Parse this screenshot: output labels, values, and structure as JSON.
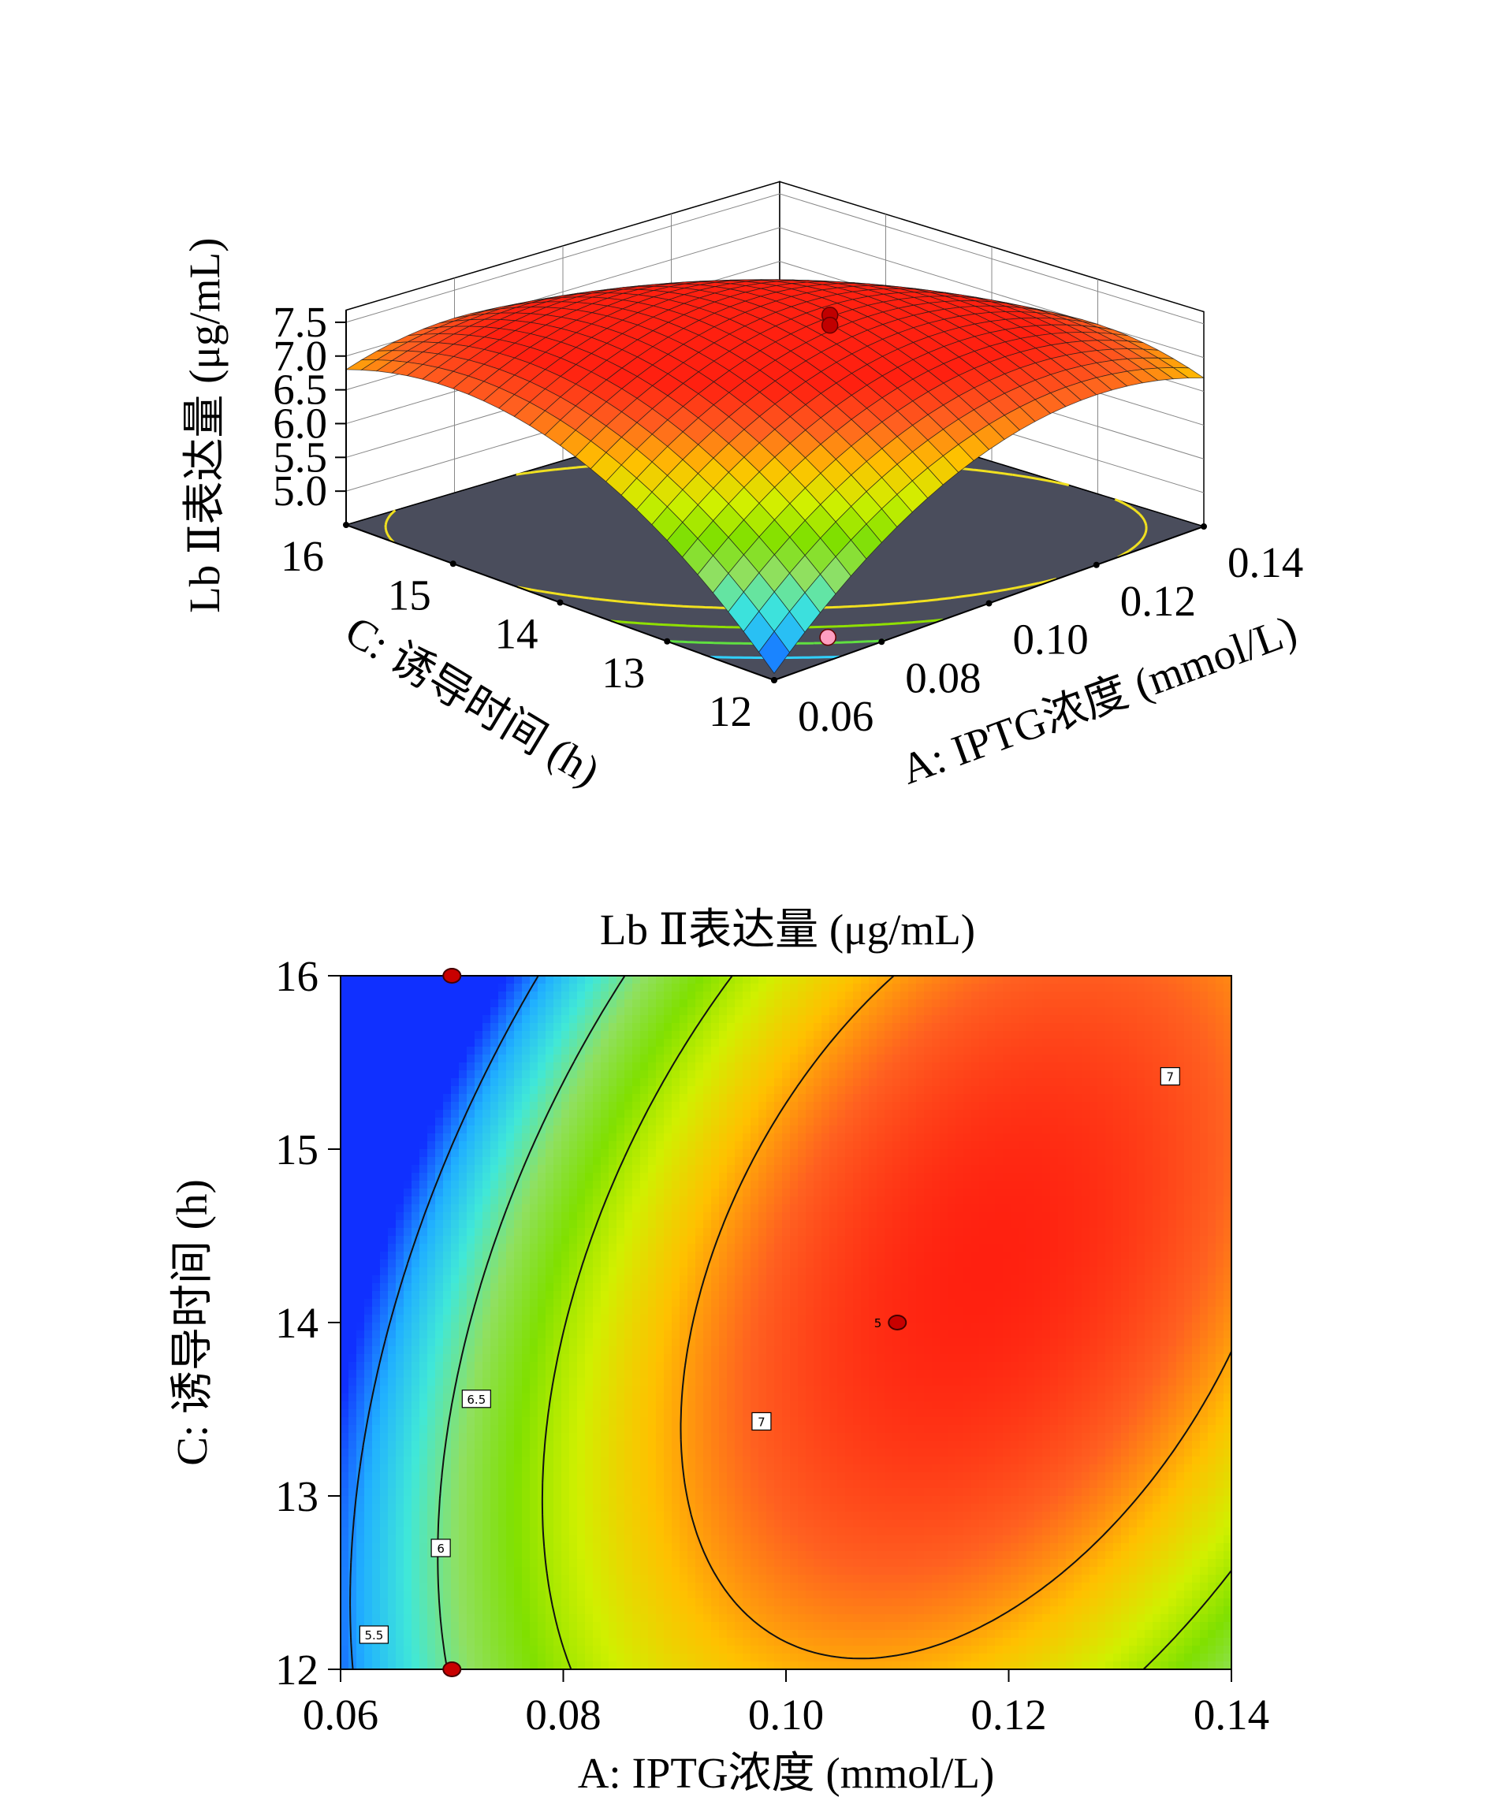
{
  "chart_data": [
    {
      "type": "surface",
      "zlabel": "Lb Ⅱ表达量 (μg/mL)",
      "xlabel": "A: IPTG浓度 (mmol/L)",
      "ylabel": "C: 诱导时间 (h)",
      "xticks": [
        "0.06",
        "0.08",
        "0.10",
        "0.12",
        "0.14"
      ],
      "yticks": [
        "12",
        "13",
        "14",
        "15",
        "16"
      ],
      "zticks": [
        "5.0",
        "5.5",
        "6.0",
        "6.5",
        "7.0",
        "7.5"
      ],
      "xlim": [
        0.06,
        0.14
      ],
      "ylim": [
        12,
        16
      ],
      "zlim": [
        4.5,
        7.5
      ],
      "surface_corners": [
        {
          "x": 0.06,
          "y": 12,
          "z": 4.6
        },
        {
          "x": 0.14,
          "y": 12,
          "z": 6.55
        },
        {
          "x": 0.06,
          "y": 16,
          "z": 6.5
        },
        {
          "x": 0.14,
          "y": 16,
          "z": 6.6
        }
      ],
      "surface_peak": {
        "x": 0.11,
        "y": 14.2,
        "z": 7.45
      },
      "design_points": [
        {
          "x": 0.11,
          "y": 14,
          "z": 7.45
        },
        {
          "x": 0.11,
          "y": 14,
          "z": 7.3
        },
        {
          "x": 0.07,
          "y": 12,
          "z": 4.85
        }
      ],
      "grid": true
    },
    {
      "type": "contour",
      "title": "Lb Ⅱ表达量 (μg/mL)",
      "xlabel": "A: IPTG浓度 (mmol/L)",
      "ylabel": "C: 诱导时间 (h)",
      "xticks": [
        "0.06",
        "0.08",
        "0.10",
        "0.12",
        "0.14"
      ],
      "yticks": [
        "12",
        "13",
        "14",
        "15",
        "16"
      ],
      "xlim": [
        0.06,
        0.14
      ],
      "ylim": [
        12,
        16
      ],
      "contour_levels": [
        5.5,
        6,
        6.5,
        7
      ],
      "contour_labels": [
        {
          "text": "7",
          "x": 0.1345,
          "y": 15.42
        },
        {
          "text": "7",
          "x": 0.0978,
          "y": 13.43
        },
        {
          "text": "6.5",
          "x": 0.0722,
          "y": 13.56
        },
        {
          "text": "6",
          "x": 0.069,
          "y": 12.7
        },
        {
          "text": "5.5",
          "x": 0.063,
          "y": 12.2
        }
      ],
      "center_point": {
        "x": 0.11,
        "y": 14,
        "label": "5"
      },
      "design_points": [
        {
          "x": 0.07,
          "y": 16
        },
        {
          "x": 0.07,
          "y": 12
        },
        {
          "x": 0.11,
          "y": 14
        }
      ],
      "colormap": [
        "#1030ff",
        "#20b0ff",
        "#40e8d8",
        "#90e060",
        "#80e000",
        "#d0f000",
        "#ffc000",
        "#ff6020",
        "#ff2010"
      ]
    }
  ]
}
